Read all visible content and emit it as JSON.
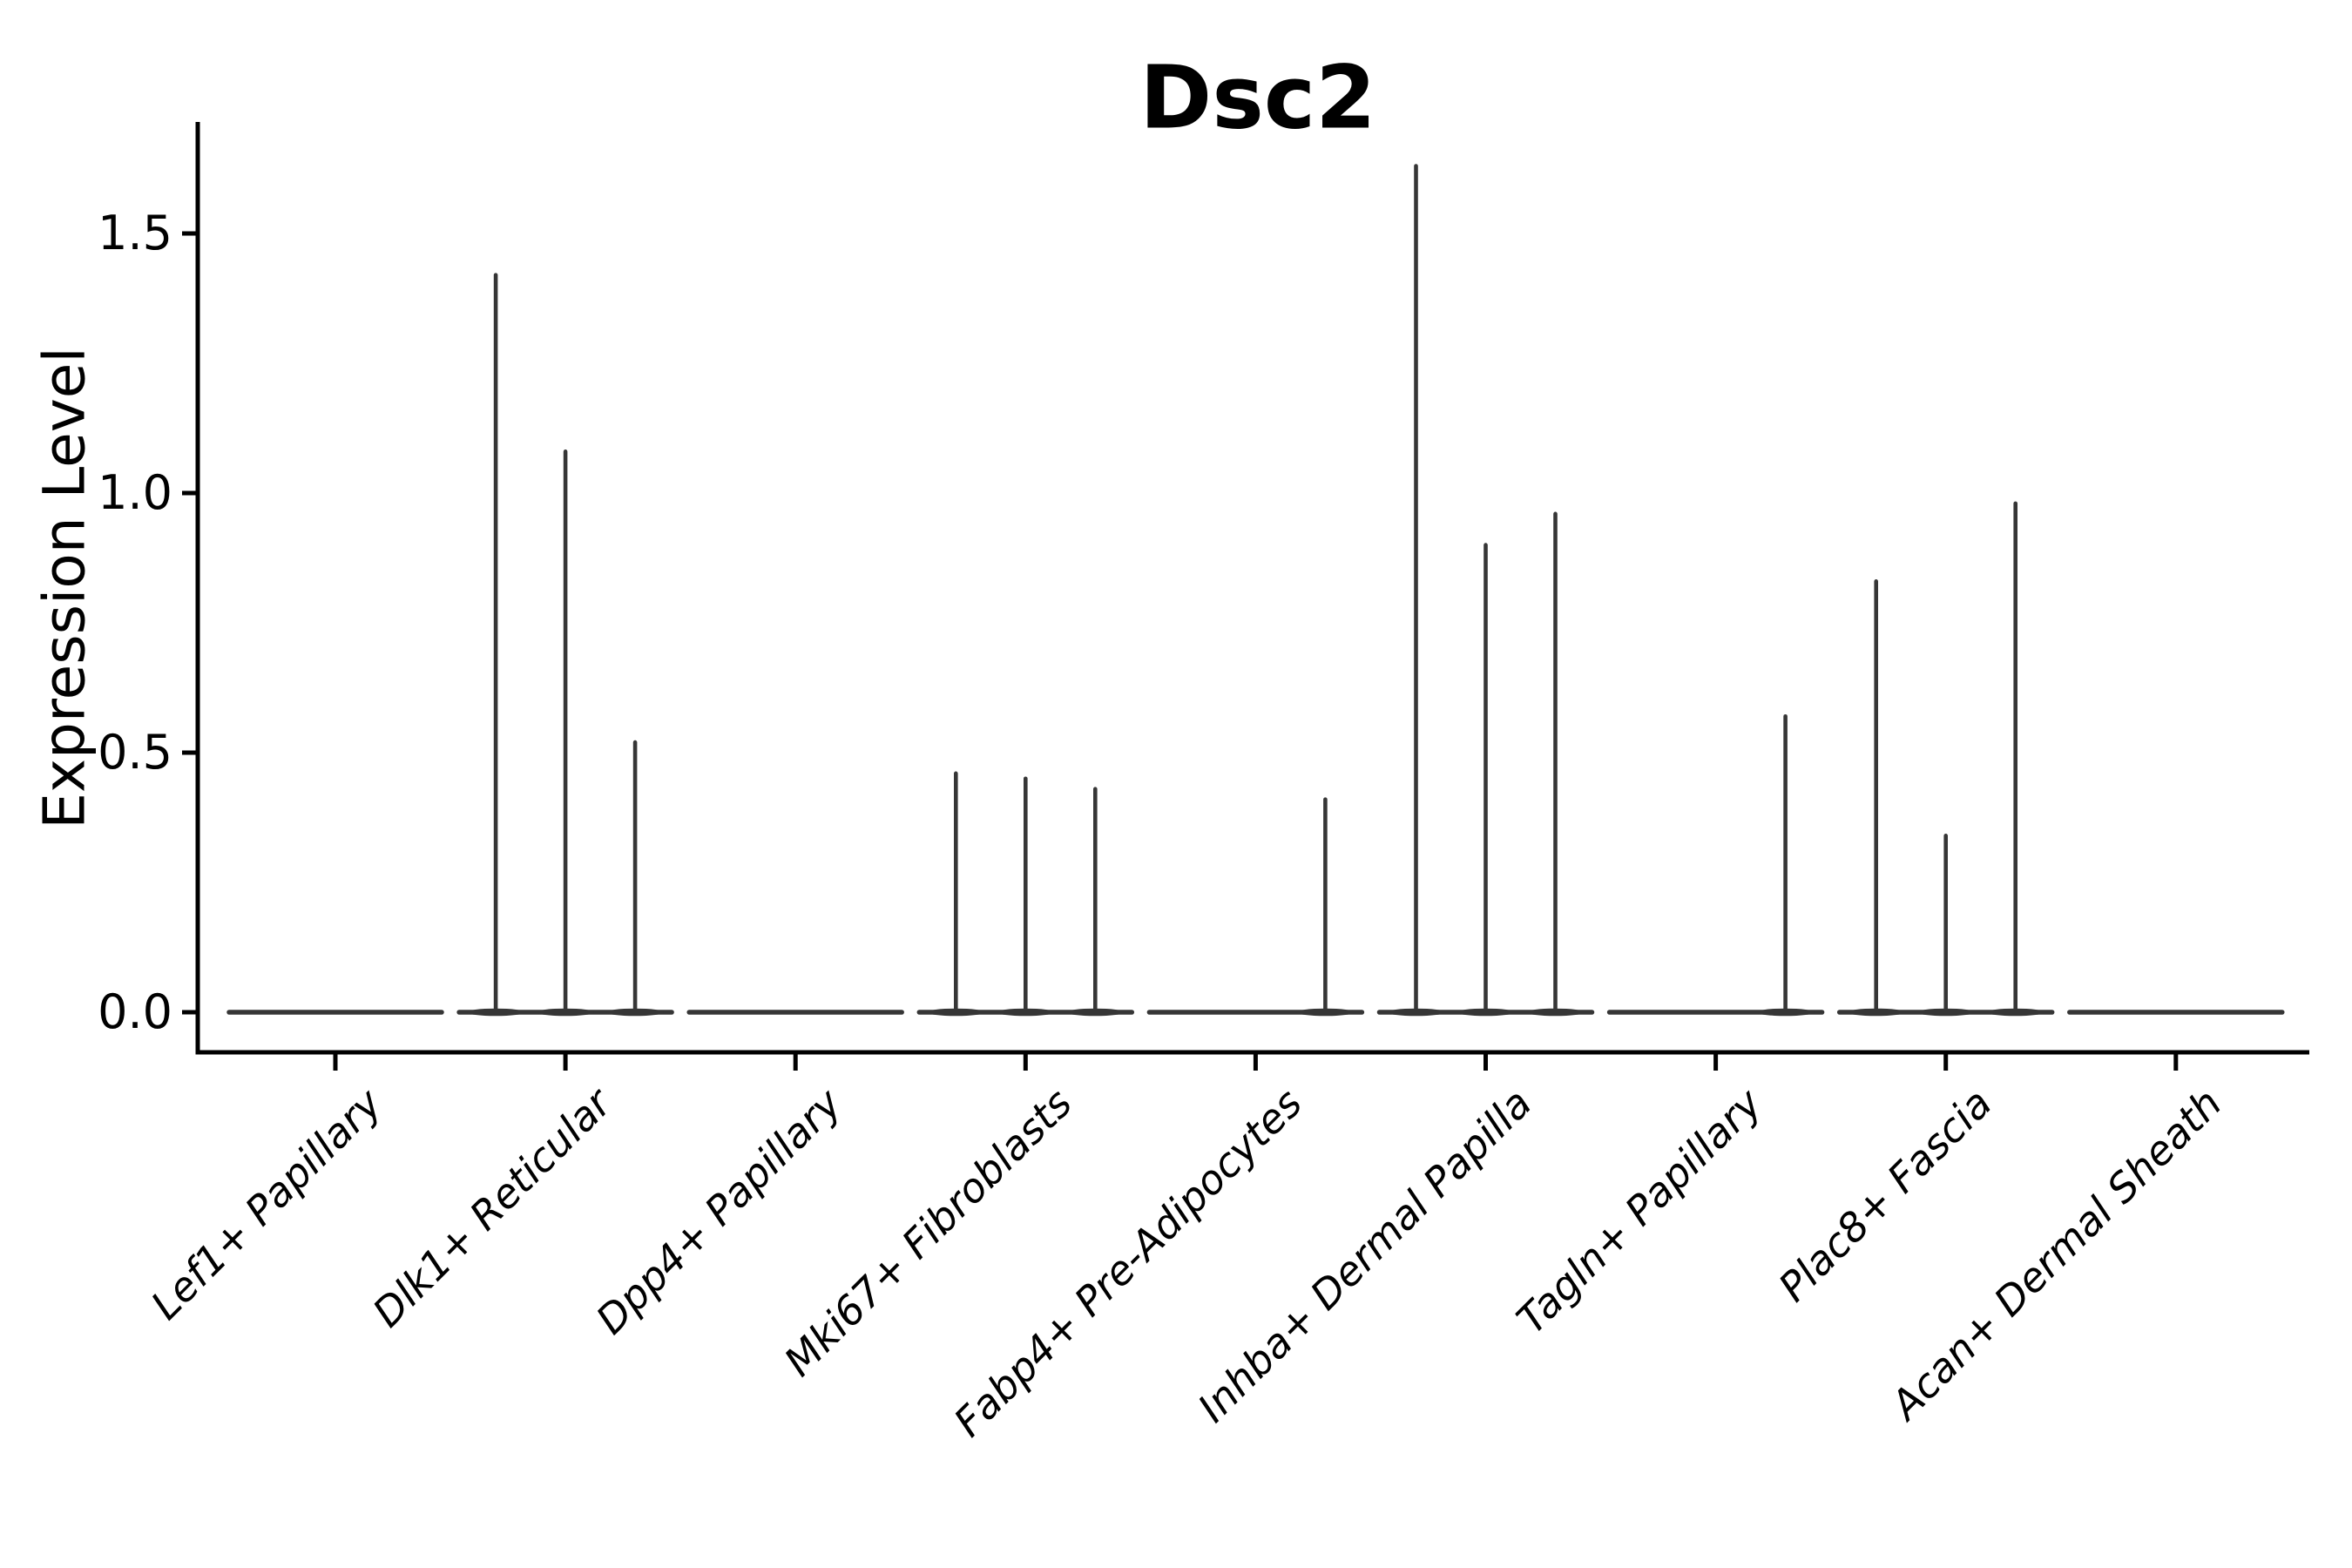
{
  "figure": {
    "title": "Dsc2"
  },
  "chart_data": {
    "type": "violin",
    "title": "Dsc2",
    "xlabel": "",
    "ylabel": "Expression Level",
    "ytick_labels": [
      "0.0",
      "0.5",
      "1.0",
      "1.5"
    ],
    "ytick_values": [
      0.0,
      0.5,
      1.0,
      1.5
    ],
    "ylim": [
      0.0,
      1.72
    ],
    "grid": false,
    "legend": "none",
    "violins_per_category": 3,
    "categories": [
      "Lef1+ Papillary",
      "Dlk1+ Reticular",
      "Dpp4+ Papillary",
      "Mki67+ Fibroblasts",
      "Fabp4+ Pre-Adipocytes",
      "Inhba+ Dermal Papilla",
      "Tagln+ Papillary",
      "Plac8+ Fascia",
      "Acan+ Dermal Sheath"
    ],
    "series": [
      {
        "category": "Lef1+ Papillary",
        "violin_max_expression": [
          0,
          0,
          0
        ]
      },
      {
        "category": "Dlk1+ Reticular",
        "violin_max_expression": [
          1.42,
          1.08,
          0.52
        ]
      },
      {
        "category": "Dpp4+ Papillary",
        "violin_max_expression": [
          0,
          0,
          0
        ]
      },
      {
        "category": "Mki67+ Fibroblasts",
        "violin_max_expression": [
          0.46,
          0.45,
          0.43
        ]
      },
      {
        "category": "Fabp4+ Pre-Adipocytes",
        "violin_max_expression": [
          0,
          0,
          0.41
        ]
      },
      {
        "category": "Inhba+ Dermal Papilla",
        "violin_max_expression": [
          1.63,
          0.9,
          0.96
        ]
      },
      {
        "category": "Tagln+ Papillary",
        "violin_max_expression": [
          0,
          0,
          0.57
        ]
      },
      {
        "category": "Plac8+ Fascia",
        "violin_max_expression": [
          0.83,
          0.34,
          0.98
        ]
      },
      {
        "category": "Acan+ Dermal Sheath",
        "violin_max_expression": [
          0,
          0,
          0
        ]
      }
    ],
    "colors": {
      "violin_stroke": "#363636",
      "axis": "#000000",
      "background": "#ffffff"
    }
  }
}
